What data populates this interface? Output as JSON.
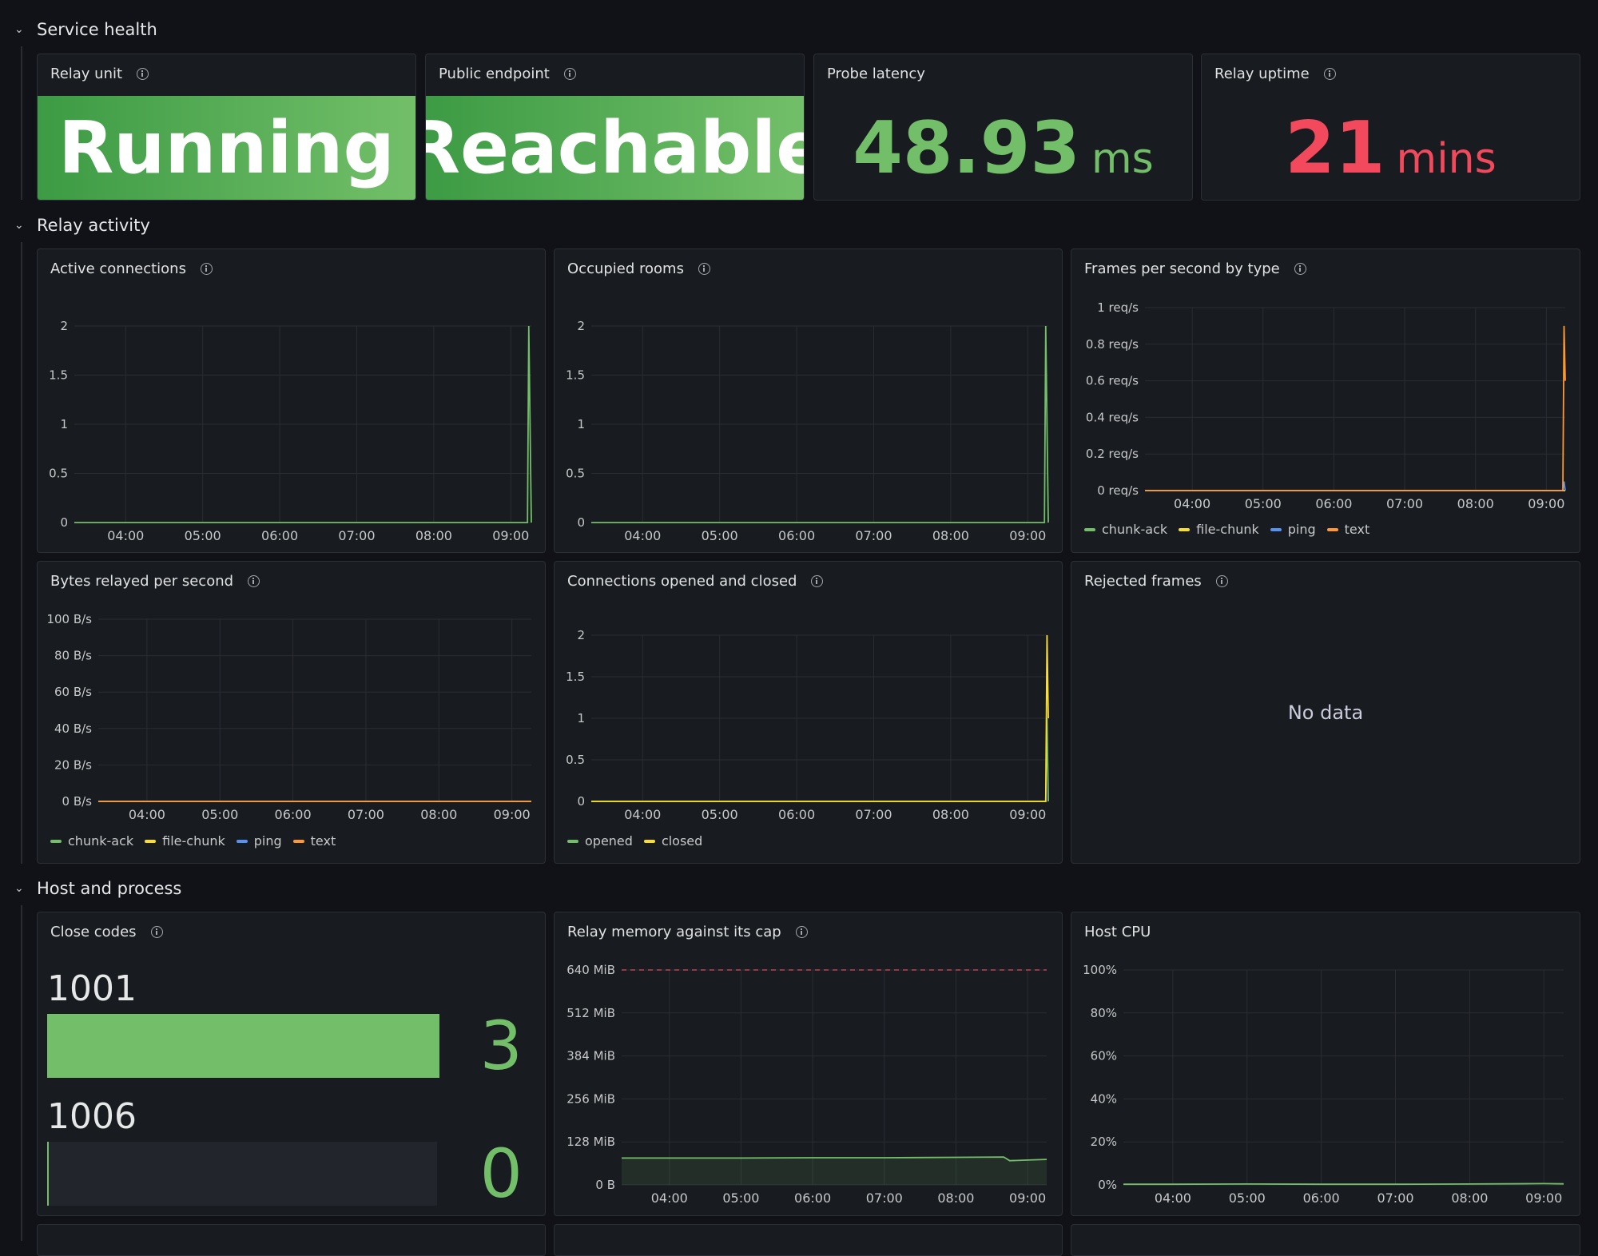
{
  "rows": [
    {
      "title": "Service health"
    },
    {
      "title": "Relay activity"
    },
    {
      "title": "Host and process"
    }
  ],
  "stats": {
    "relay_unit": {
      "title": "Relay unit",
      "value": "Running"
    },
    "public_endpoint": {
      "title": "Public endpoint",
      "value": "Reachable"
    },
    "probe_latency": {
      "title": "Probe latency",
      "value": "48.93",
      "unit": "ms",
      "color": "#73bf69"
    },
    "relay_uptime": {
      "title": "Relay uptime",
      "value": "21",
      "unit": "mins",
      "color": "#f2495c"
    }
  },
  "panels": {
    "active_connections": {
      "title": "Active connections"
    },
    "occupied_rooms": {
      "title": "Occupied rooms"
    },
    "frames_per_second": {
      "title": "Frames per second by type"
    },
    "bytes_relayed": {
      "title": "Bytes relayed per second"
    },
    "connections_opened_closed": {
      "title": "Connections opened and closed"
    },
    "rejected_frames": {
      "title": "Rejected frames",
      "message": "No data"
    },
    "close_codes": {
      "title": "Close codes"
    },
    "relay_memory": {
      "title": "Relay memory against its cap"
    },
    "host_cpu": {
      "title": "Host CPU"
    }
  },
  "close_codes": {
    "items": [
      {
        "label": "1001",
        "value": "3",
        "fraction": 1.0
      },
      {
        "label": "1006",
        "value": "0",
        "fraction": 0.0
      }
    ]
  },
  "colors": {
    "green": "#73bf69",
    "yellow": "#fade2a",
    "blue": "#5794f2",
    "orange": "#ff9830",
    "red": "#f2495c"
  },
  "chart_data": [
    {
      "id": "active_connections",
      "type": "line",
      "x": [
        "03:20",
        "04:00",
        "05:00",
        "06:00",
        "07:00",
        "08:00",
        "09:00",
        "09:13",
        "09:14",
        "09:15",
        "09:16"
      ],
      "xticks": [
        "04:00",
        "05:00",
        "06:00",
        "07:00",
        "08:00",
        "09:00"
      ],
      "yticks": [
        "0",
        "0.5",
        "1",
        "1.5",
        "2"
      ],
      "ylim": [
        0,
        2
      ],
      "series": [
        {
          "values": [
            0,
            0,
            0,
            0,
            0,
            0,
            0,
            0,
            2,
            1,
            0
          ],
          "color": "#73bf69"
        }
      ]
    },
    {
      "id": "occupied_rooms",
      "type": "line",
      "x": [
        "03:20",
        "04:00",
        "05:00",
        "06:00",
        "07:00",
        "08:00",
        "09:00",
        "09:13",
        "09:14",
        "09:15",
        "09:16"
      ],
      "xticks": [
        "04:00",
        "05:00",
        "06:00",
        "07:00",
        "08:00",
        "09:00"
      ],
      "yticks": [
        "0",
        "0.5",
        "1",
        "1.5",
        "2"
      ],
      "ylim": [
        0,
        2
      ],
      "series": [
        {
          "values": [
            0,
            0,
            0,
            0,
            0,
            0,
            0,
            0,
            2,
            1,
            0
          ],
          "color": "#73bf69"
        }
      ]
    },
    {
      "id": "frames_per_second",
      "type": "line",
      "x": [
        "03:20",
        "04:00",
        "05:00",
        "06:00",
        "07:00",
        "08:00",
        "09:00",
        "09:14",
        "09:15",
        "09:16"
      ],
      "xticks": [
        "04:00",
        "05:00",
        "06:00",
        "07:00",
        "08:00",
        "09:00"
      ],
      "yticks": [
        "0 req/s",
        "0.2 req/s",
        "0.4 req/s",
        "0.6 req/s",
        "0.8 req/s",
        "1 req/s"
      ],
      "ylim": [
        0,
        1
      ],
      "series": [
        {
          "name": "chunk-ack",
          "values": [
            0,
            0,
            0,
            0,
            0,
            0,
            0,
            0,
            0,
            0
          ],
          "color": "#73bf69"
        },
        {
          "name": "file-chunk",
          "values": [
            0,
            0,
            0,
            0,
            0,
            0,
            0,
            0,
            0,
            0
          ],
          "color": "#fade2a"
        },
        {
          "name": "ping",
          "values": [
            0,
            0,
            0,
            0,
            0,
            0,
            0,
            0,
            0.05,
            0
          ],
          "color": "#5794f2"
        },
        {
          "name": "text",
          "values": [
            0,
            0,
            0,
            0,
            0,
            0,
            0,
            0,
            0.9,
            0.6
          ],
          "color": "#ff9830"
        }
      ]
    },
    {
      "id": "bytes_relayed",
      "type": "line",
      "x": [
        "03:20",
        "04:00",
        "05:00",
        "06:00",
        "07:00",
        "08:00",
        "09:00",
        "09:14",
        "09:16"
      ],
      "xticks": [
        "04:00",
        "05:00",
        "06:00",
        "07:00",
        "08:00",
        "09:00"
      ],
      "yticks": [
        "0 B/s",
        "20 B/s",
        "40 B/s",
        "60 B/s",
        "80 B/s",
        "100 B/s"
      ],
      "ylim": [
        0,
        100
      ],
      "series": [
        {
          "name": "chunk-ack",
          "values": [
            0,
            0,
            0,
            0,
            0,
            0,
            0,
            0,
            0
          ],
          "color": "#73bf69"
        },
        {
          "name": "file-chunk",
          "values": [
            0,
            0,
            0,
            0,
            0,
            0,
            0,
            0,
            0
          ],
          "color": "#fade2a"
        },
        {
          "name": "ping",
          "values": [
            0,
            0,
            0,
            0,
            0,
            0,
            0,
            0,
            0
          ],
          "color": "#5794f2"
        },
        {
          "name": "text",
          "values": [
            0,
            0,
            0,
            0,
            0,
            0,
            0,
            0,
            0
          ],
          "color": "#ff9830"
        }
      ]
    },
    {
      "id": "connections_opened_closed",
      "type": "line",
      "x": [
        "03:20",
        "04:00",
        "05:00",
        "06:00",
        "07:00",
        "08:00",
        "09:00",
        "09:14",
        "09:15",
        "09:16"
      ],
      "xticks": [
        "04:00",
        "05:00",
        "06:00",
        "07:00",
        "08:00",
        "09:00"
      ],
      "yticks": [
        "0",
        "0.5",
        "1",
        "1.5",
        "2"
      ],
      "ylim": [
        0,
        2
      ],
      "series": [
        {
          "name": "opened",
          "values": [
            0,
            0,
            0,
            0,
            0,
            0,
            0,
            0,
            1,
            0
          ],
          "color": "#73bf69"
        },
        {
          "name": "closed",
          "values": [
            0,
            0,
            0,
            0,
            0,
            0,
            0,
            0,
            2,
            1
          ],
          "color": "#fade2a"
        }
      ]
    },
    {
      "id": "relay_memory",
      "type": "area",
      "x": [
        "03:20",
        "04:00",
        "05:00",
        "06:00",
        "07:00",
        "08:00",
        "08:40",
        "08:45",
        "09:00",
        "09:16"
      ],
      "xticks": [
        "04:00",
        "05:00",
        "06:00",
        "07:00",
        "08:00",
        "09:00"
      ],
      "yticks": [
        "0 B",
        "128 MiB",
        "256 MiB",
        "384 MiB",
        "512 MiB",
        "640 MiB"
      ],
      "ylim": [
        0,
        640
      ],
      "cap": 640,
      "series": [
        {
          "values": [
            80,
            80,
            80,
            81,
            81,
            82,
            83,
            72,
            74,
            76
          ],
          "color": "#73bf69"
        }
      ]
    },
    {
      "id": "host_cpu",
      "type": "line",
      "x": [
        "03:20",
        "04:00",
        "05:00",
        "06:00",
        "07:00",
        "08:00",
        "09:00",
        "09:16"
      ],
      "xticks": [
        "04:00",
        "05:00",
        "06:00",
        "07:00",
        "08:00",
        "09:00"
      ],
      "yticks": [
        "0%",
        "20%",
        "40%",
        "60%",
        "80%",
        "100%"
      ],
      "ylim": [
        0,
        100
      ],
      "series": [
        {
          "values": [
            0.3,
            0.3,
            0.4,
            0.3,
            0.3,
            0.4,
            0.6,
            0.5
          ],
          "color": "#73bf69"
        }
      ]
    }
  ]
}
